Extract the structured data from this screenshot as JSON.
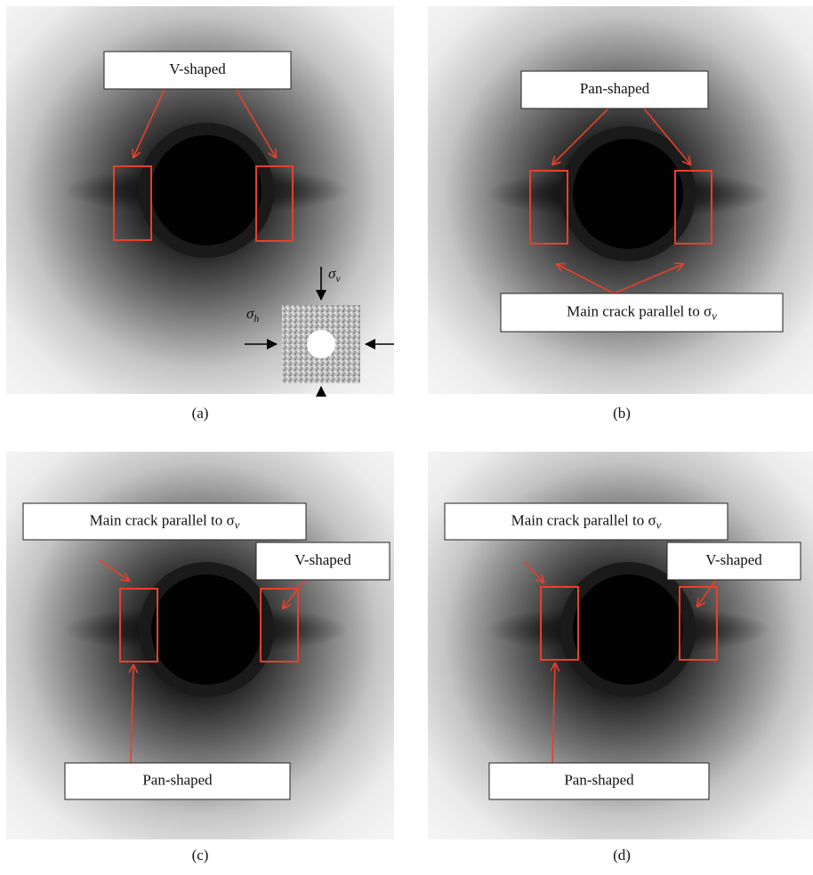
{
  "panels": [
    {
      "caption": "(a)",
      "labels": [
        {
          "text": "V-shaped"
        }
      ],
      "inset": {
        "sigma_v": {
          "symbol": "σ",
          "sub": "v"
        },
        "sigma_h": {
          "symbol": "σ",
          "sub": "h"
        }
      }
    },
    {
      "caption": "(b)",
      "labels": [
        {
          "text": "Pan-shaped"
        },
        {
          "text": "Main crack parallel to σ",
          "sub": "v"
        }
      ]
    },
    {
      "caption": "(c)",
      "labels": [
        {
          "text": "Main crack parallel to σ",
          "sub": "v"
        },
        {
          "text": "V-shaped"
        },
        {
          "text": "Pan-shaped"
        }
      ]
    },
    {
      "caption": "(d)",
      "labels": [
        {
          "text": "Main crack parallel to σ",
          "sub": "v"
        },
        {
          "text": "V-shaped"
        },
        {
          "text": "Pan-shaped"
        }
      ]
    }
  ]
}
